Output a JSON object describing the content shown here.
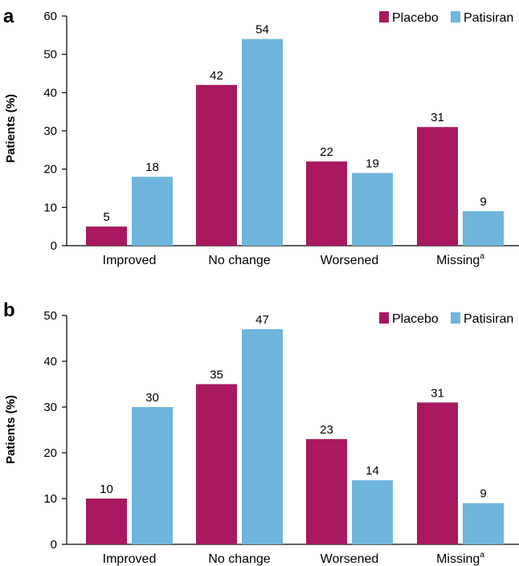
{
  "colors": {
    "placebo": "#A8195F",
    "patisiran": "#6FB5DC"
  },
  "chart_data": [
    {
      "panel": "a",
      "type": "bar",
      "ylabel": "Patients (%)",
      "ylim": [
        0,
        60
      ],
      "yticks": [
        0,
        10,
        20,
        30,
        40,
        50,
        60
      ],
      "categories": [
        "Improved",
        "No change",
        "Worsened",
        "Missing"
      ],
      "category_superscripts": [
        "",
        "",
        "",
        "a"
      ],
      "legend": {
        "position": "top-right"
      },
      "series": [
        {
          "name": "Placebo",
          "values": [
            5,
            42,
            22,
            31
          ]
        },
        {
          "name": "Patisiran",
          "values": [
            18,
            54,
            19,
            9
          ]
        }
      ]
    },
    {
      "panel": "b",
      "type": "bar",
      "ylabel": "Patients (%)",
      "ylim": [
        0,
        50
      ],
      "yticks": [
        0,
        10,
        20,
        30,
        40,
        50
      ],
      "categories": [
        "Improved",
        "No change",
        "Worsened",
        "Missing"
      ],
      "category_superscripts": [
        "",
        "",
        "",
        "a"
      ],
      "legend": {
        "position": "top-right"
      },
      "series": [
        {
          "name": "Placebo",
          "values": [
            10,
            35,
            23,
            31
          ]
        },
        {
          "name": "Patisiran",
          "values": [
            30,
            47,
            14,
            9
          ]
        }
      ]
    }
  ]
}
